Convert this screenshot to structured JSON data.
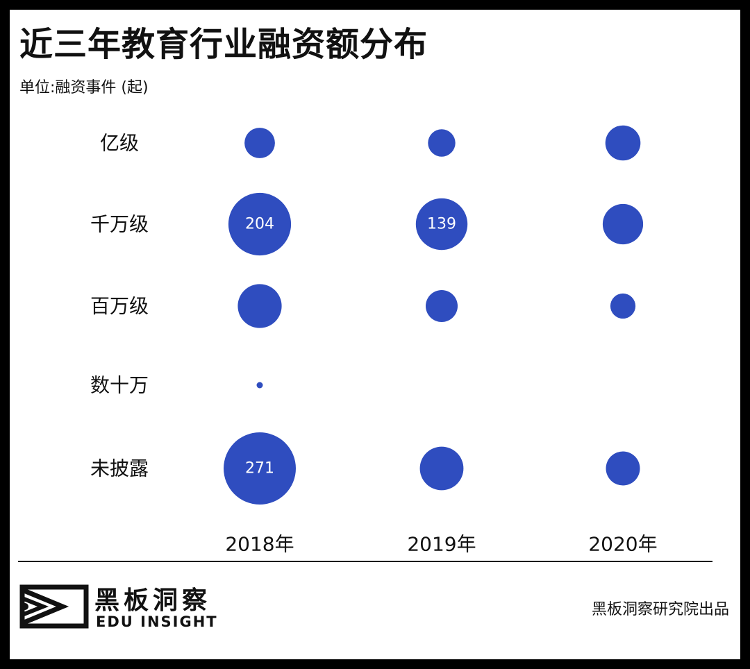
{
  "title": "近三年教育行业融资额分布",
  "subtitle": "单位:融资事件 (起)",
  "colors": {
    "bubble": "#2f4dbf",
    "bubble_label": "#ffffff",
    "text": "#111111",
    "frame": "#000000"
  },
  "chart_data": {
    "type": "scatter",
    "encoding": "bubble",
    "x_categories": [
      "2018年",
      "2019年",
      "2020年"
    ],
    "y_categories": [
      "亿级",
      "千万级",
      "百万级",
      "数十万",
      "未披露"
    ],
    "points": [
      {
        "x": "2018年",
        "y": "亿级",
        "size": 48
      },
      {
        "x": "2019年",
        "y": "亿级",
        "size": 39
      },
      {
        "x": "2020年",
        "y": "亿级",
        "size": 64
      },
      {
        "x": "2018年",
        "y": "千万级",
        "size": 204,
        "label": "204"
      },
      {
        "x": "2019年",
        "y": "千万级",
        "size": 139,
        "label": "139"
      },
      {
        "x": "2020年",
        "y": "千万级",
        "size": 85
      },
      {
        "x": "2018年",
        "y": "百万级",
        "size": 100
      },
      {
        "x": "2019年",
        "y": "百万级",
        "size": 53
      },
      {
        "x": "2020年",
        "y": "百万级",
        "size": 33
      },
      {
        "x": "2018年",
        "y": "数十万",
        "size": 2
      },
      {
        "x": "2018年",
        "y": "未披露",
        "size": 271,
        "label": "271"
      },
      {
        "x": "2019年",
        "y": "未披露",
        "size": 99
      },
      {
        "x": "2020年",
        "y": "未披露",
        "size": 60
      }
    ],
    "legend": "none",
    "grid": false
  },
  "footer": {
    "brand_cn": "黑板洞察",
    "brand_en": "EDU INSIGHT",
    "credit": "黑板洞察研究院出品"
  }
}
